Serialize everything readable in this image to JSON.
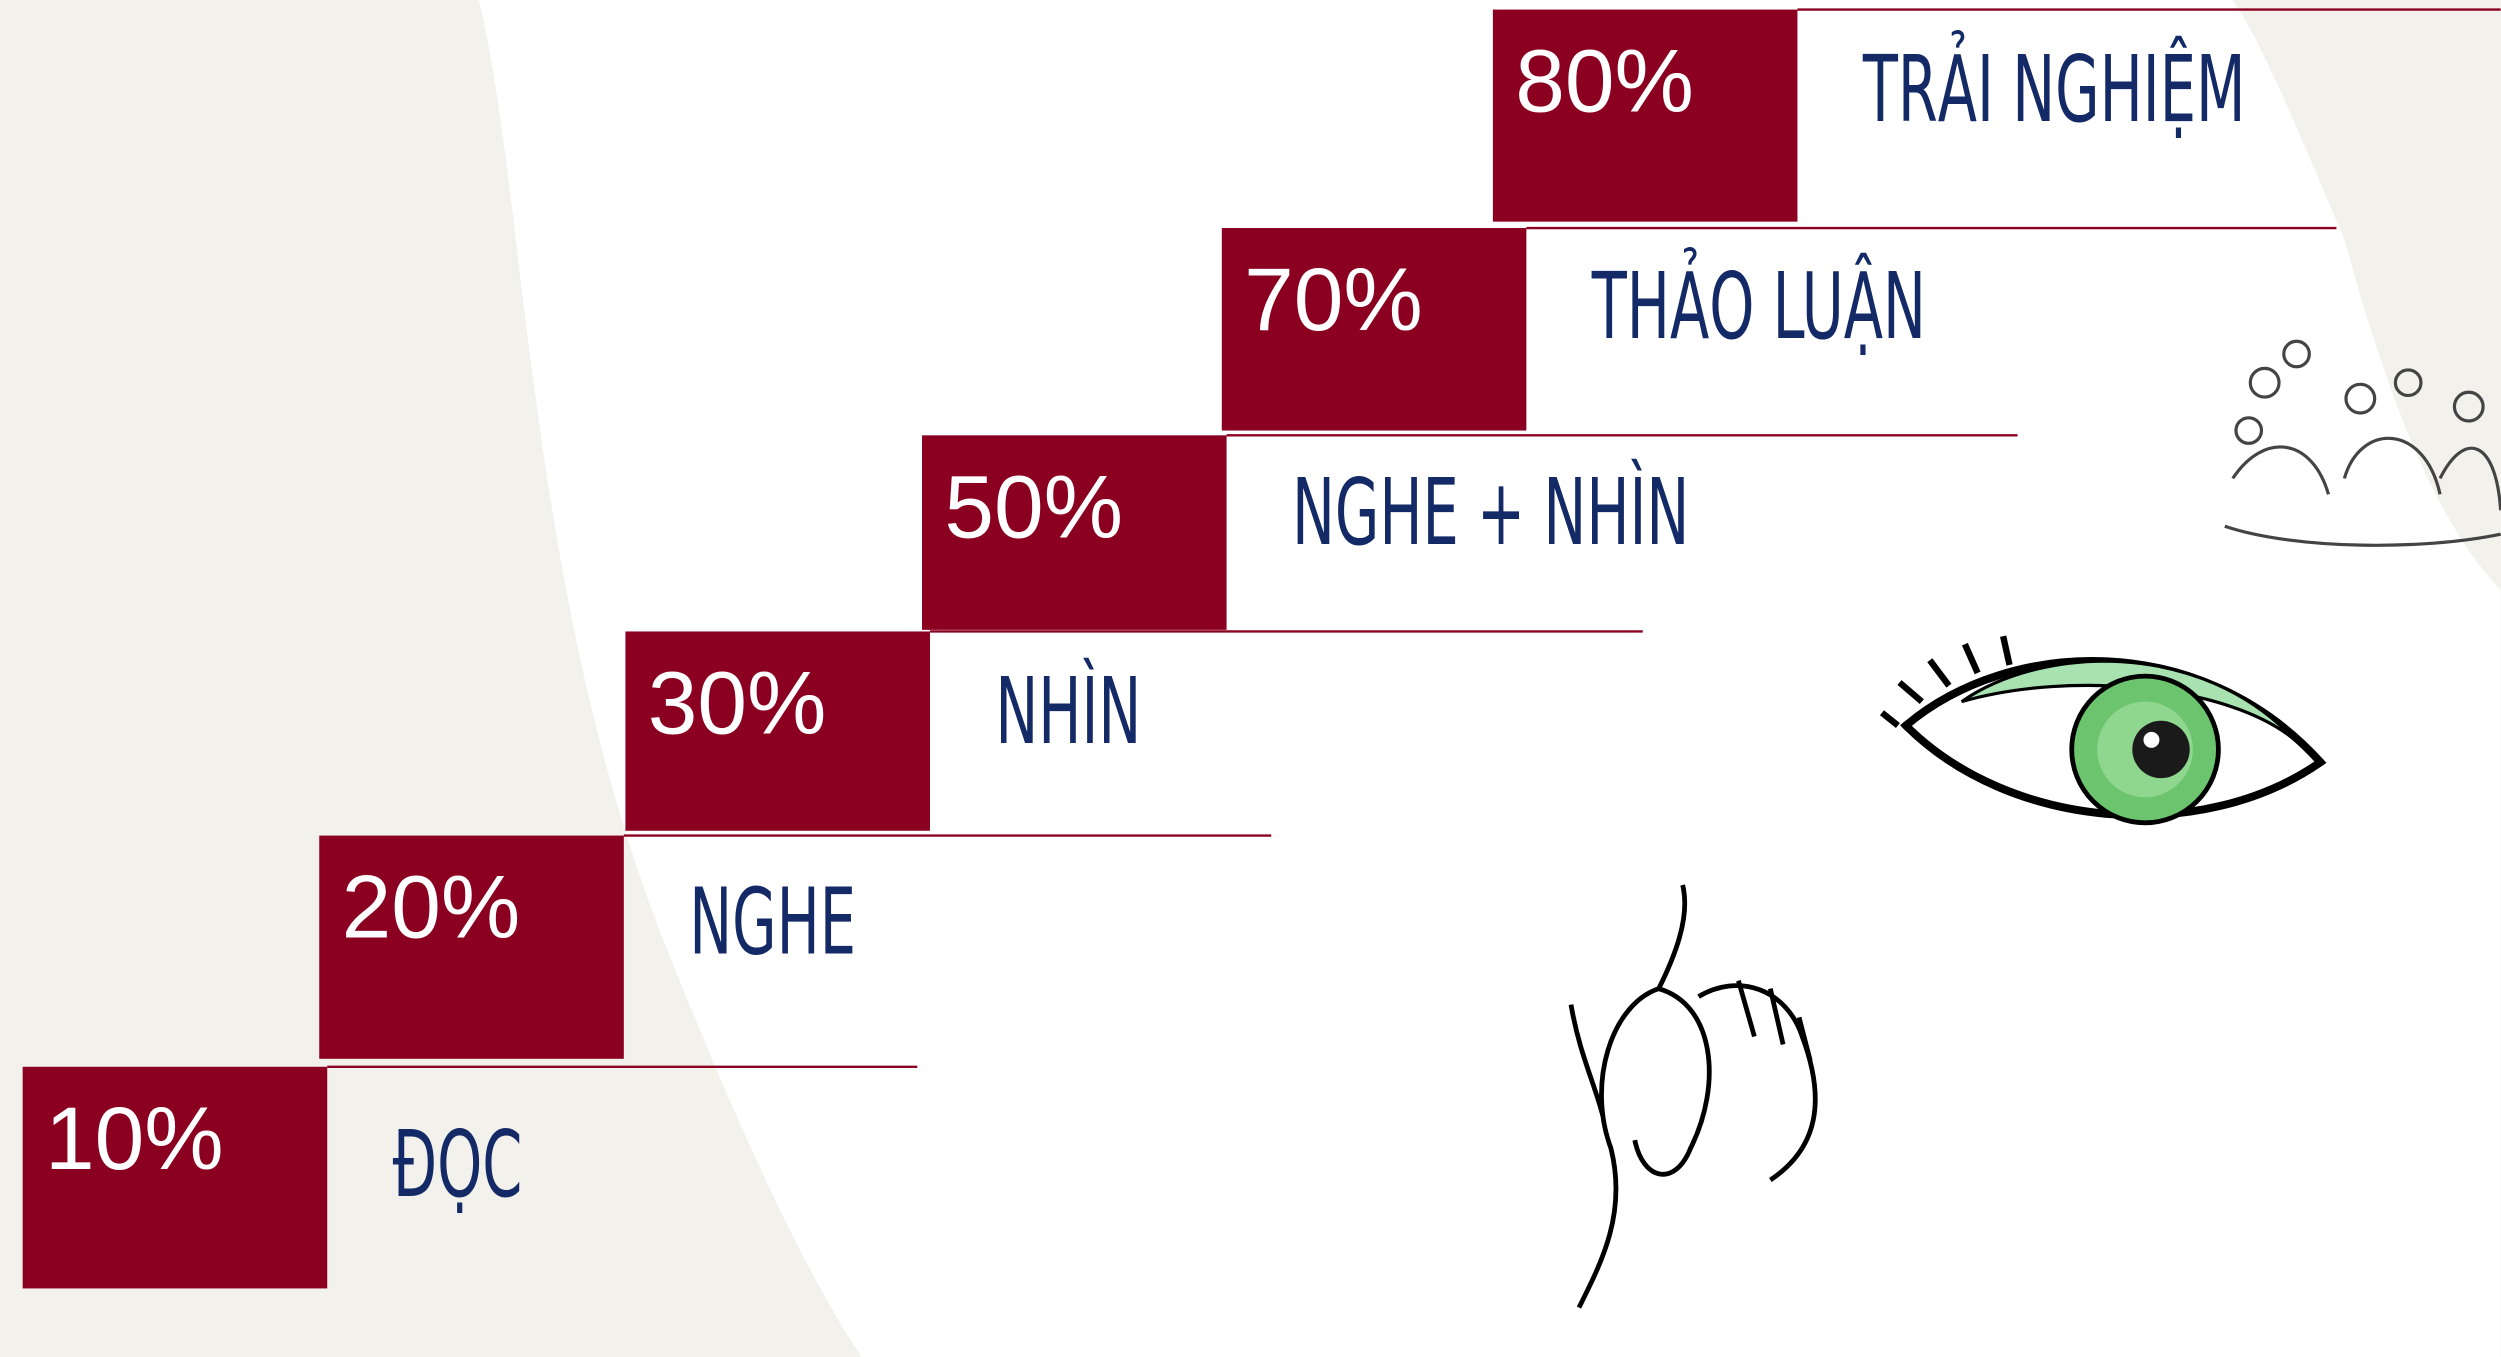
{
  "steps": [
    {
      "percent": "10%",
      "label": "ĐỌC"
    },
    {
      "percent": "20%",
      "label": "NGHE"
    },
    {
      "percent": "30%",
      "label": "NHÌN"
    },
    {
      "percent": "50%",
      "label": "NGHE + NHÌN"
    },
    {
      "percent": "70%",
      "label": "THẢO LUẬN"
    },
    {
      "percent": "80%",
      "label": "TRẢI NGHIỆM"
    }
  ]
}
